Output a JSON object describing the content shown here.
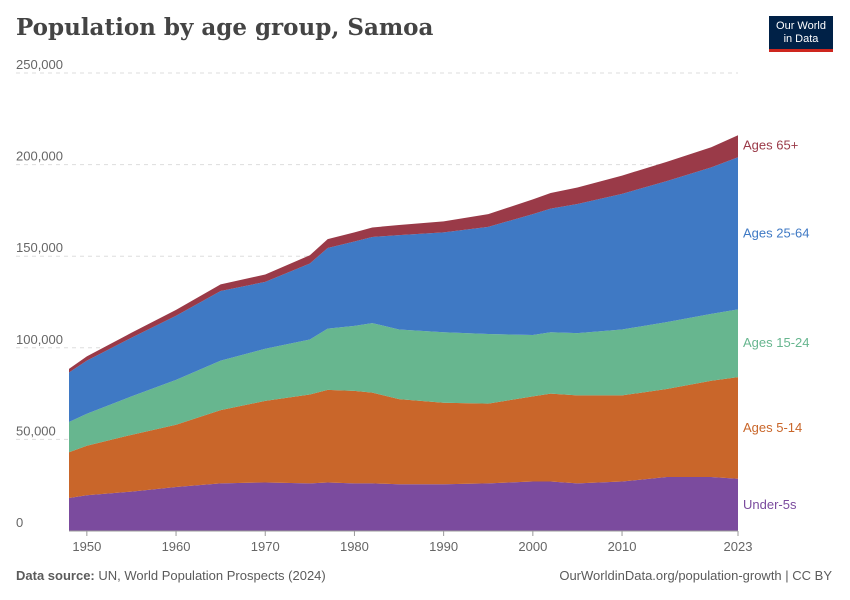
{
  "header": {
    "title": "Population by age group, Samoa",
    "logo_line1": "Our World",
    "logo_line2": "in Data"
  },
  "footer": {
    "source_label": "Data source:",
    "source_text": "UN, World Population Prospects (2024)",
    "url_text": "OurWorldinData.org/population-growth | CC BY"
  },
  "colors": {
    "under5": "#7b4b9e",
    "age5_14": "#c9662a",
    "age15_24": "#67b68f",
    "age25_64": "#3f79c4",
    "age65": "#9a3a48"
  },
  "chart_data": {
    "type": "area",
    "stacked": true,
    "title": "Population by age group, Samoa",
    "xlabel": "",
    "ylabel": "",
    "xlim": [
      1950,
      2023
    ],
    "ylim": [
      0,
      250000
    ],
    "grid": true,
    "x_ticks": [
      1950,
      1960,
      1970,
      1980,
      1990,
      2000,
      2010,
      2023
    ],
    "y_ticks": [
      0,
      50000,
      100000,
      150000,
      200000,
      250000
    ],
    "y_tick_labels": [
      "0",
      "50,000",
      "100,000",
      "150,000",
      "200,000",
      "250,000"
    ],
    "x": [
      1948,
      1950,
      1955,
      1960,
      1965,
      1970,
      1975,
      1977,
      1980,
      1982,
      1985,
      1990,
      1995,
      2000,
      2002,
      2005,
      2010,
      2015,
      2020,
      2023
    ],
    "series": [
      {
        "name": "Under-5s",
        "color_key": "under5",
        "values": [
          18000,
          19500,
          21500,
          24000,
          26000,
          26500,
          26000,
          26500,
          26000,
          26000,
          25500,
          25500,
          26000,
          27000,
          27000,
          26000,
          27000,
          29500,
          29500,
          28500
        ]
      },
      {
        "name": "Ages 5-14",
        "color_key": "age5_14",
        "values": [
          25000,
          27000,
          31000,
          34000,
          40000,
          44500,
          48500,
          50500,
          50500,
          49500,
          46500,
          44500,
          43500,
          46500,
          48000,
          48000,
          47000,
          48000,
          52500,
          55500
        ]
      },
      {
        "name": "Ages 15-24",
        "color_key": "age15_24",
        "values": [
          16500,
          17500,
          21000,
          24500,
          27000,
          28500,
          30000,
          33500,
          35500,
          38000,
          38000,
          38500,
          38000,
          33500,
          33500,
          34000,
          36000,
          36500,
          36500,
          37000
        ]
      },
      {
        "name": "Ages 25-64",
        "color_key": "age25_64",
        "values": [
          27000,
          29000,
          32000,
          35000,
          38000,
          36500,
          41500,
          44000,
          46000,
          47000,
          51500,
          54500,
          58500,
          66000,
          67500,
          70500,
          74000,
          77000,
          80000,
          83000
        ]
      },
      {
        "name": "Ages 65+",
        "color_key": "age65",
        "values": [
          2000,
          2300,
          2700,
          3200,
          3600,
          4000,
          4500,
          4800,
          5000,
          5200,
          5500,
          6000,
          7000,
          8000,
          8500,
          9000,
          10000,
          10500,
          11000,
          12000
        ]
      }
    ]
  }
}
